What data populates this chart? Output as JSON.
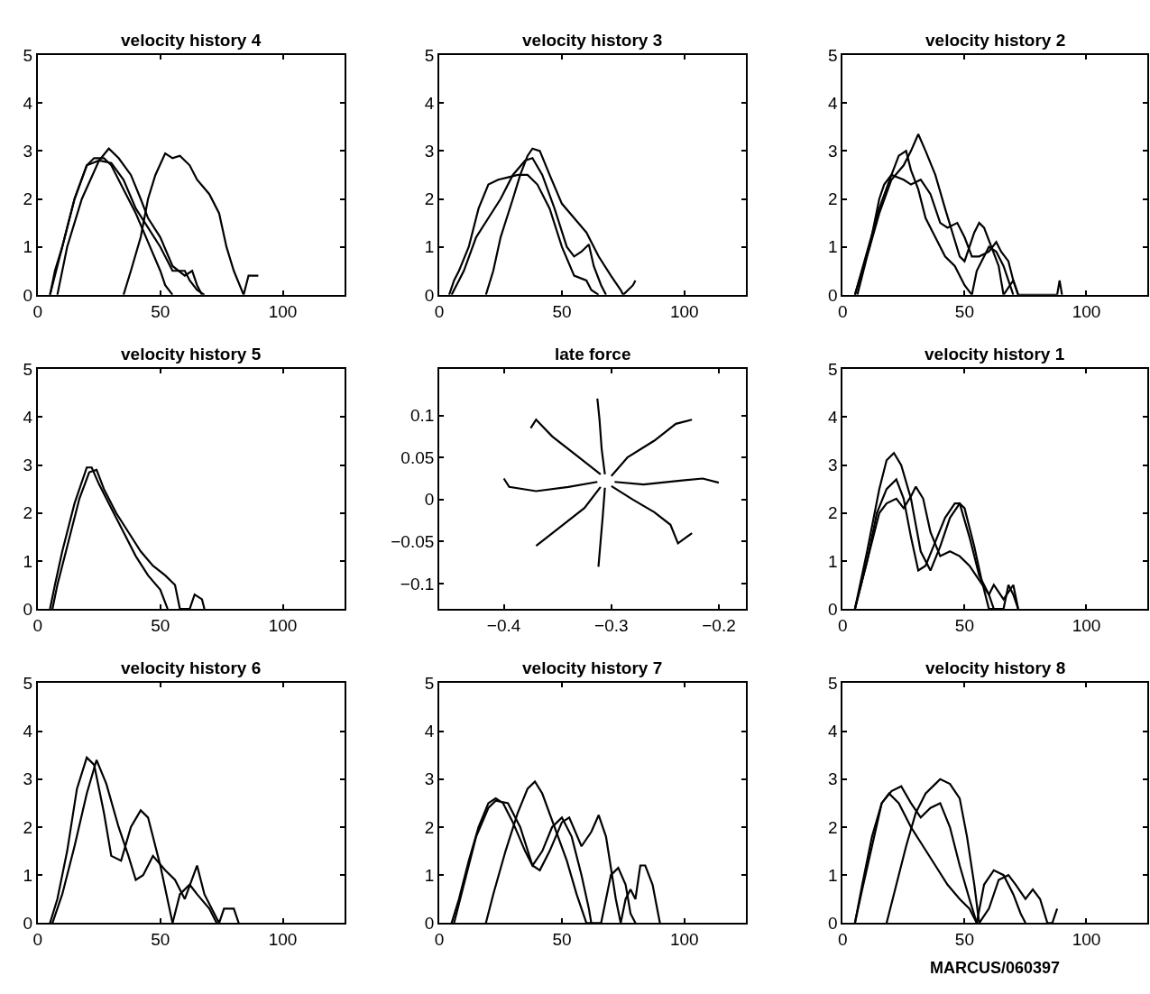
{
  "chart_data": [
    {
      "type": "line",
      "title": "velocity history 4",
      "xlim": [
        0,
        125
      ],
      "xticks": [
        0,
        50,
        100
      ],
      "ylim": [
        0,
        5
      ],
      "yticks": [
        0,
        1,
        2,
        3,
        4,
        5
      ],
      "grid": false,
      "series": [
        {
          "color": "#000000",
          "x": [
            5,
            7,
            10,
            15,
            20,
            23,
            27,
            30,
            35,
            40,
            45,
            50,
            52,
            55
          ],
          "values": [
            0,
            0.5,
            1,
            2,
            2.7,
            2.85,
            2.85,
            2.7,
            2.2,
            1.7,
            1.1,
            0.5,
            0.2,
            0
          ]
        },
        {
          "color": "#000000",
          "x": [
            8,
            12,
            18,
            25,
            29,
            33,
            38,
            42,
            45,
            50,
            55,
            60,
            63,
            65,
            67
          ],
          "values": [
            0,
            1,
            2,
            2.8,
            3.05,
            2.85,
            2.5,
            2,
            1.6,
            1.2,
            0.6,
            0.4,
            0.5,
            0.2,
            0
          ]
        },
        {
          "color": "#000000",
          "x": [
            5,
            10,
            15,
            20,
            25,
            30,
            35,
            40,
            45,
            50,
            55,
            60,
            62,
            65,
            68
          ],
          "values": [
            0,
            1,
            2,
            2.7,
            2.8,
            2.75,
            2.4,
            1.8,
            1.4,
            1,
            0.5,
            0.5,
            0.3,
            0.1,
            0
          ]
        },
        {
          "color": "#000000",
          "x": [
            35,
            38,
            42,
            45,
            48,
            52,
            55,
            58,
            62,
            65,
            70,
            74,
            77,
            80,
            84,
            86,
            90
          ],
          "values": [
            0,
            0.5,
            1.2,
            2,
            2.5,
            2.95,
            2.85,
            2.9,
            2.7,
            2.4,
            2.1,
            1.7,
            1,
            0.5,
            0,
            0.4,
            0.4
          ]
        }
      ]
    },
    {
      "type": "line",
      "title": "velocity history 3",
      "xlim": [
        0,
        125
      ],
      "xticks": [
        0,
        50,
        100
      ],
      "ylim": [
        0,
        5
      ],
      "yticks": [
        0,
        1,
        2,
        3,
        4,
        5
      ],
      "grid": false,
      "series": [
        {
          "color": "#000000",
          "x": [
            4,
            6,
            8,
            12,
            16,
            20,
            24,
            28,
            32,
            36,
            40,
            45,
            50,
            55,
            60,
            62,
            65
          ],
          "values": [
            0,
            0.3,
            0.5,
            1,
            1.8,
            2.3,
            2.4,
            2.45,
            2.5,
            2.5,
            2.3,
            1.8,
            1,
            0.4,
            0.3,
            0.1,
            0
          ]
        },
        {
          "color": "#000000",
          "x": [
            5,
            10,
            15,
            20,
            25,
            30,
            35,
            38,
            42,
            47,
            52,
            55,
            58,
            61,
            63,
            66,
            68
          ],
          "values": [
            0,
            0.5,
            1.2,
            1.6,
            2,
            2.5,
            2.8,
            2.85,
            2.5,
            1.8,
            1,
            0.8,
            0.9,
            1.05,
            0.6,
            0.2,
            0
          ]
        },
        {
          "color": "#000000",
          "x": [
            19,
            22,
            25,
            30,
            33,
            36,
            38,
            41,
            45,
            50,
            55,
            60,
            65,
            70,
            74,
            75,
            79,
            80
          ],
          "values": [
            0,
            0.5,
            1.2,
            2,
            2.5,
            2.9,
            3.05,
            3,
            2.5,
            1.9,
            1.6,
            1.3,
            0.8,
            0.4,
            0.1,
            0,
            0.2,
            0.3
          ]
        }
      ]
    },
    {
      "type": "line",
      "title": "velocity history 2",
      "xlim": [
        0,
        125
      ],
      "xticks": [
        0,
        50,
        100
      ],
      "ylim": [
        0,
        5
      ],
      "yticks": [
        0,
        1,
        2,
        3,
        4,
        5
      ],
      "grid": false,
      "series": [
        {
          "color": "#000000",
          "x": [
            5,
            8,
            11,
            15,
            17,
            20,
            25,
            28,
            32,
            36,
            40,
            43,
            47,
            50,
            53,
            56,
            60,
            63,
            65,
            68,
            70,
            72
          ],
          "values": [
            0,
            0.5,
            1,
            2,
            2.3,
            2.5,
            2.4,
            2.3,
            2.4,
            2.1,
            1.5,
            1.4,
            1.5,
            1.2,
            0.8,
            0.8,
            0.9,
            1.1,
            0.9,
            0.7,
            0.3,
            0
          ]
        },
        {
          "color": "#000000",
          "x": [
            5,
            10,
            15,
            20,
            23,
            26,
            28,
            31,
            34,
            38,
            42,
            46,
            50,
            53,
            55,
            60,
            63,
            66,
            68,
            70
          ],
          "values": [
            0,
            0.9,
            1.8,
            2.5,
            2.9,
            3,
            2.6,
            2.2,
            1.6,
            1.2,
            0.8,
            0.6,
            0.2,
            0,
            0.5,
            1,
            0.9,
            0.6,
            0.3,
            0
          ]
        },
        {
          "color": "#000000",
          "x": [
            6,
            10,
            15,
            20,
            25,
            28,
            31,
            34,
            38,
            42,
            45,
            48,
            50,
            54,
            56,
            58,
            61,
            64,
            66,
            70,
            72,
            88,
            89,
            90
          ],
          "values": [
            0,
            0.8,
            1.7,
            2.4,
            2.7,
            3,
            3.35,
            3,
            2.5,
            1.8,
            1.3,
            0.8,
            0.7,
            1.3,
            1.5,
            1.4,
            1,
            0.6,
            0,
            0.3,
            0,
            0,
            0.3,
            0
          ]
        }
      ]
    },
    {
      "type": "line",
      "title": "velocity history 5",
      "xlim": [
        0,
        125
      ],
      "xticks": [
        0,
        50,
        100
      ],
      "ylim": [
        0,
        5
      ],
      "yticks": [
        0,
        1,
        2,
        3,
        4,
        5
      ],
      "grid": false,
      "series": [
        {
          "color": "#000000",
          "x": [
            5,
            7,
            10,
            15,
            20,
            22,
            25,
            30,
            35,
            40,
            45,
            50,
            53
          ],
          "values": [
            0,
            0.5,
            1.2,
            2.2,
            2.95,
            2.95,
            2.6,
            2.1,
            1.6,
            1.1,
            0.7,
            0.4,
            0
          ]
        },
        {
          "color": "#000000",
          "x": [
            6,
            8,
            12,
            17,
            21,
            24,
            27,
            32,
            37,
            42,
            47,
            52,
            56,
            58,
            62,
            64,
            67,
            68
          ],
          "values": [
            0,
            0.5,
            1.3,
            2.3,
            2.85,
            2.9,
            2.5,
            2,
            1.6,
            1.2,
            0.9,
            0.7,
            0.5,
            0,
            0,
            0.3,
            0.2,
            0
          ]
        }
      ]
    },
    {
      "type": "line",
      "title": "late force",
      "xlim": [
        -0.46,
        -0.175
      ],
      "xticks": [
        {
          "value": -0.4,
          "label": "−0.4"
        },
        {
          "value": -0.3,
          "label": "−0.3"
        },
        {
          "value": -0.2,
          "label": "−0.2"
        }
      ],
      "ylim": [
        -0.13,
        0.155
      ],
      "yticks": [
        {
          "value": -0.1,
          "label": "−0.1"
        },
        {
          "value": -0.05,
          "label": "−0.05"
        },
        0,
        0.05,
        0.1
      ],
      "grid": false,
      "series": [
        {
          "color": "#000000",
          "x": [
            -0.31,
            -0.33,
            -0.355,
            -0.37,
            -0.375
          ],
          "values": [
            0.03,
            0.05,
            0.075,
            0.095,
            0.085
          ]
        },
        {
          "color": "#000000",
          "x": [
            -0.306,
            -0.309,
            -0.311,
            -0.313
          ],
          "values": [
            0.03,
            0.06,
            0.095,
            0.12
          ]
        },
        {
          "color": "#000000",
          "x": [
            -0.3,
            -0.285,
            -0.26,
            -0.24,
            -0.225
          ],
          "values": [
            0.028,
            0.05,
            0.07,
            0.09,
            0.095
          ]
        },
        {
          "color": "#000000",
          "x": [
            -0.297,
            -0.27,
            -0.24,
            -0.215,
            -0.2
          ],
          "values": [
            0.021,
            0.018,
            0.022,
            0.025,
            0.02
          ]
        },
        {
          "color": "#000000",
          "x": [
            -0.3,
            -0.28,
            -0.26,
            -0.245,
            -0.238,
            -0.225
          ],
          "values": [
            0.016,
            0,
            -0.015,
            -0.03,
            -0.052,
            -0.04
          ]
        },
        {
          "color": "#000000",
          "x": [
            -0.306,
            -0.308,
            -0.31,
            -0.312
          ],
          "values": [
            0.014,
            -0.02,
            -0.05,
            -0.08
          ]
        },
        {
          "color": "#000000",
          "x": [
            -0.31,
            -0.325,
            -0.345,
            -0.36,
            -0.37
          ],
          "values": [
            0.015,
            -0.01,
            -0.03,
            -0.045,
            -0.055
          ]
        },
        {
          "color": "#000000",
          "x": [
            -0.313,
            -0.34,
            -0.37,
            -0.395,
            -0.4
          ],
          "values": [
            0.021,
            0.015,
            0.01,
            0.015,
            0.025
          ]
        }
      ]
    },
    {
      "type": "line",
      "title": "velocity history 1",
      "xlim": [
        0,
        125
      ],
      "xticks": [
        0,
        50,
        100
      ],
      "ylim": [
        0,
        5
      ],
      "yticks": [
        0,
        1,
        2,
        3,
        4,
        5
      ],
      "grid": false,
      "series": [
        {
          "color": "#000000",
          "x": [
            5,
            10,
            15,
            18,
            22,
            25,
            28,
            30,
            33,
            36,
            40,
            44,
            48,
            52,
            56,
            60,
            62
          ],
          "values": [
            0,
            1,
            2,
            2.2,
            2.3,
            2.1,
            2.35,
            2.55,
            2.3,
            1.6,
            1.1,
            1.2,
            1.1,
            0.9,
            0.6,
            0.3,
            0
          ]
        },
        {
          "color": "#000000",
          "x": [
            5,
            10,
            14,
            18,
            22,
            25,
            28,
            31,
            34,
            38,
            42,
            46,
            48,
            52,
            56,
            60,
            62,
            66,
            70,
            72
          ],
          "values": [
            0,
            1,
            2,
            2.5,
            2.7,
            2.3,
            1.5,
            0.8,
            0.9,
            1.4,
            1.9,
            2.2,
            2.2,
            1.5,
            0.7,
            0.3,
            0.5,
            0.2,
            0.5,
            0
          ]
        },
        {
          "color": "#000000",
          "x": [
            5,
            10,
            15,
            18,
            21,
            24,
            28,
            32,
            36,
            40,
            44,
            48,
            50,
            54,
            57,
            60,
            66,
            68,
            70,
            72
          ],
          "values": [
            0,
            1.2,
            2.5,
            3.1,
            3.25,
            3,
            2.3,
            1.2,
            0.8,
            1.3,
            1.9,
            2.2,
            2.1,
            1.3,
            0.6,
            0,
            0,
            0.5,
            0.3,
            0
          ]
        }
      ]
    },
    {
      "type": "line",
      "title": "velocity history 6",
      "xlim": [
        0,
        125
      ],
      "xticks": [
        0,
        50,
        100
      ],
      "ylim": [
        0,
        5
      ],
      "yticks": [
        0,
        1,
        2,
        3,
        4,
        5
      ],
      "grid": false,
      "series": [
        {
          "color": "#000000",
          "x": [
            5,
            8,
            12,
            16,
            20,
            23,
            27,
            30,
            34,
            38,
            42,
            45,
            50,
            55
          ],
          "values": [
            0,
            0.5,
            1.5,
            2.8,
            3.45,
            3.3,
            2.3,
            1.4,
            1.3,
            2,
            2.35,
            2.2,
            1.2,
            0
          ]
        },
        {
          "color": "#000000",
          "x": [
            6,
            10,
            15,
            20,
            24,
            28,
            33,
            37,
            40,
            43,
            47,
            52,
            56,
            60,
            65,
            68,
            72,
            74,
            76,
            80,
            82
          ],
          "values": [
            0,
            0.6,
            1.6,
            2.7,
            3.4,
            2.9,
            2,
            1.4,
            0.9,
            1,
            1.4,
            1.1,
            0.9,
            0.5,
            1.2,
            0.6,
            0.2,
            0,
            0.3,
            0.3,
            0
          ]
        },
        {
          "color": "#000000",
          "x": [
            55,
            58,
            62,
            65,
            70,
            73
          ],
          "values": [
            0,
            0.6,
            0.8,
            0.6,
            0.3,
            0
          ]
        }
      ]
    },
    {
      "type": "line",
      "title": "velocity history 7",
      "xlim": [
        0,
        125
      ],
      "xticks": [
        0,
        50,
        100
      ],
      "ylim": [
        0,
        5
      ],
      "yticks": [
        0,
        1,
        2,
        3,
        4,
        5
      ],
      "grid": false,
      "series": [
        {
          "color": "#000000",
          "x": [
            5,
            8,
            12,
            16,
            20,
            23,
            26,
            30,
            35,
            38,
            42,
            46,
            50,
            54,
            58,
            61,
            62
          ],
          "values": [
            0,
            0.5,
            1.3,
            2,
            2.5,
            2.6,
            2.5,
            2.1,
            1.5,
            1.2,
            1.5,
            2,
            2.2,
            1.8,
            1,
            0.3,
            0
          ]
        },
        {
          "color": "#000000",
          "x": [
            6,
            10,
            15,
            20,
            23,
            28,
            33,
            38,
            41,
            45,
            50,
            53,
            58,
            62,
            65,
            68,
            72,
            74,
            76,
            78,
            80,
            82,
            84,
            87,
            90
          ],
          "values": [
            0,
            0.8,
            1.8,
            2.4,
            2.55,
            2.5,
            2,
            1.2,
            1.1,
            1.5,
            2.1,
            2.2,
            1.6,
            1.9,
            2.25,
            1.8,
            0.5,
            0,
            0.5,
            0.7,
            0.5,
            1.2,
            1.2,
            0.8,
            0
          ]
        },
        {
          "color": "#000000",
          "x": [
            19,
            22,
            27,
            32,
            36,
            39,
            42,
            47,
            52,
            56,
            60,
            66,
            70,
            73,
            76,
            78,
            80
          ],
          "values": [
            0,
            0.6,
            1.5,
            2.3,
            2.8,
            2.95,
            2.7,
            2,
            1.3,
            0.6,
            0,
            0,
            1,
            1.15,
            0.8,
            0.2,
            0
          ]
        }
      ]
    },
    {
      "type": "line",
      "title": "velocity history 8",
      "xlim": [
        0,
        125
      ],
      "xticks": [
        0,
        50,
        100
      ],
      "ylim": [
        0,
        5
      ],
      "yticks": [
        0,
        1,
        2,
        3,
        4,
        5
      ],
      "grid": false,
      "annotations": [
        "MARCUS/060397"
      ],
      "series": [
        {
          "color": "#000000",
          "x": [
            5,
            8,
            12,
            16,
            19,
            23,
            28,
            33,
            38,
            43,
            48,
            52,
            55
          ],
          "values": [
            0,
            0.7,
            1.6,
            2.5,
            2.7,
            2.5,
            2,
            1.6,
            1.2,
            0.8,
            0.5,
            0.3,
            0
          ]
        },
        {
          "color": "#000000",
          "x": [
            5,
            8,
            12,
            16,
            20,
            24,
            28,
            32,
            36,
            40,
            44,
            48,
            52,
            55,
            58,
            62,
            66,
            70,
            73,
            75
          ],
          "values": [
            0,
            0.8,
            1.8,
            2.5,
            2.75,
            2.85,
            2.5,
            2.2,
            2.4,
            2.5,
            2,
            1.2,
            0.5,
            0,
            0.8,
            1.1,
            1,
            0.6,
            0.2,
            0
          ]
        },
        {
          "color": "#000000",
          "x": [
            18,
            22,
            26,
            30,
            34,
            38,
            40,
            44,
            48,
            51,
            54,
            56,
            60,
            64,
            68,
            71,
            75,
            78,
            81,
            84,
            86,
            88
          ],
          "values": [
            0,
            0.8,
            1.6,
            2.3,
            2.7,
            2.9,
            3,
            2.9,
            2.6,
            1.8,
            0.8,
            0,
            0.3,
            0.9,
            1,
            0.8,
            0.5,
            0.7,
            0.5,
            0,
            0,
            0.3
          ]
        }
      ]
    }
  ]
}
